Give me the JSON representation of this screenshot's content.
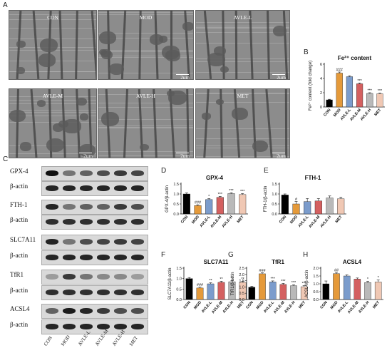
{
  "panel_letters": [
    "A",
    "B",
    "C",
    "D",
    "E",
    "F",
    "G",
    "H"
  ],
  "em_images": [
    {
      "label": "CON",
      "scale": ""
    },
    {
      "label": "MOD",
      "scale": "2μm"
    },
    {
      "label": "AVLE-L",
      "scale": "2μm"
    },
    {
      "label": "AVLE-M",
      "scale": "2μm"
    },
    {
      "label": "AVLE-H",
      "scale": "2μm"
    },
    {
      "label": "MET",
      "scale": "2μm"
    }
  ],
  "blot_labels": [
    "GPX-4",
    "β-actin",
    "FTH-1",
    "β-actin",
    "SLC7A11",
    "β-actin",
    "TfR1",
    "β-actin",
    "ACSL4",
    "β-actin"
  ],
  "lanes": [
    "CON",
    "MOD",
    "AVLE-L",
    "AVLE-M",
    "AVLE-H",
    "MET"
  ],
  "bar_colors": [
    "#000000",
    "#e59a3a",
    "#7b9ccc",
    "#d46060",
    "#b9b9b9",
    "#f0c8b4"
  ],
  "chart_data": [
    {
      "id": "B",
      "type": "bar",
      "title": "Fe²⁺ content",
      "ylabel": "Fe²⁺ content (fold change)",
      "categories": [
        "CON",
        "MOD",
        "AVLE-L",
        "AVLE-M",
        "AVLE-H",
        "MET"
      ],
      "values": [
        1.0,
        4.75,
        4.25,
        3.25,
        1.9,
        1.85
      ],
      "errors": [
        0.08,
        0.15,
        0.12,
        0.12,
        0.1,
        0.1
      ],
      "ylim": [
        0,
        6
      ],
      "yticks": [
        "0",
        "2",
        "4",
        "6"
      ],
      "stars": [
        "",
        "###",
        "",
        "***",
        "***",
        "***"
      ]
    },
    {
      "id": "D",
      "type": "bar",
      "title": "GPX-4",
      "ylabel": "GPX-4/β-actin",
      "categories": [
        "CON",
        "MOD",
        "AVLE-L",
        "AVLE-M",
        "AVLE-H",
        "MET"
      ],
      "values": [
        1.0,
        0.42,
        0.72,
        0.83,
        1.02,
        0.97
      ],
      "errors": [
        0.05,
        0.04,
        0.05,
        0.05,
        0.04,
        0.05
      ],
      "ylim": [
        0,
        1.5
      ],
      "yticks": [
        "0.0",
        "0.5",
        "1.0",
        "1.5"
      ],
      "stars": [
        "",
        "###",
        "*",
        "***",
        "***",
        "***"
      ]
    },
    {
      "id": "E",
      "type": "bar",
      "title": "FTH-1",
      "ylabel": "FTH-1/β-actin",
      "categories": [
        "CON",
        "MOD",
        "AVLE-L",
        "AVLE-M",
        "AVLE-H",
        "MET"
      ],
      "values": [
        0.95,
        0.5,
        0.62,
        0.65,
        0.8,
        0.76
      ],
      "errors": [
        0.05,
        0.12,
        0.15,
        0.12,
        0.1,
        0.08
      ],
      "ylim": [
        0,
        1.5
      ],
      "yticks": [
        "0.0",
        "0.5",
        "1.0",
        "1.5"
      ],
      "stars": [
        "",
        "#",
        "",
        "",
        "",
        ""
      ]
    },
    {
      "id": "F",
      "type": "bar",
      "title": "SLC7A11",
      "ylabel": "SLC7A11/β-actin",
      "categories": [
        "CON",
        "MOD",
        "AVLE-L",
        "AVLE-M",
        "AVLE-H",
        "MET"
      ],
      "values": [
        1.0,
        0.55,
        0.75,
        0.82,
        0.85,
        0.82
      ],
      "errors": [
        0.05,
        0.04,
        0.05,
        0.05,
        0.05,
        0.05
      ],
      "ylim": [
        0,
        1.5
      ],
      "yticks": [
        "0.0",
        "0.5",
        "1.0",
        "1.5"
      ],
      "stars": [
        "",
        "###",
        "**",
        "**",
        "**",
        "**"
      ]
    },
    {
      "id": "G",
      "type": "bar",
      "title": "TfR1",
      "ylabel": "TfR1/β-actin",
      "categories": [
        "CON",
        "MOD",
        "AVLE-L",
        "AVLE-M",
        "AVLE-H",
        "MET"
      ],
      "values": [
        0.98,
        2.05,
        1.4,
        1.2,
        1.1,
        1.02
      ],
      "errors": [
        0.08,
        0.08,
        0.08,
        0.08,
        0.07,
        0.08
      ],
      "ylim": [
        0,
        2.5
      ],
      "yticks": [
        "0.0",
        "0.5",
        "1.0",
        "1.5",
        "2.0",
        "2.5"
      ],
      "stars": [
        "",
        "###",
        "***",
        "***",
        "***",
        "***"
      ]
    },
    {
      "id": "H",
      "type": "bar",
      "title": "ACSL4",
      "ylabel": "ACSL4/β-actin",
      "categories": [
        "CON",
        "MOD",
        "AVLE-L",
        "AVLE-M",
        "AVLE-H",
        "MET"
      ],
      "values": [
        1.0,
        1.65,
        1.5,
        1.3,
        1.08,
        1.12
      ],
      "errors": [
        0.18,
        0.08,
        0.07,
        0.07,
        0.08,
        0.12
      ],
      "ylim": [
        0,
        2.0
      ],
      "yticks": [
        "0.0",
        "0.5",
        "1.0",
        "1.5",
        "2.0"
      ],
      "stars": [
        "",
        "##",
        "",
        "",
        "*",
        "*"
      ]
    }
  ]
}
